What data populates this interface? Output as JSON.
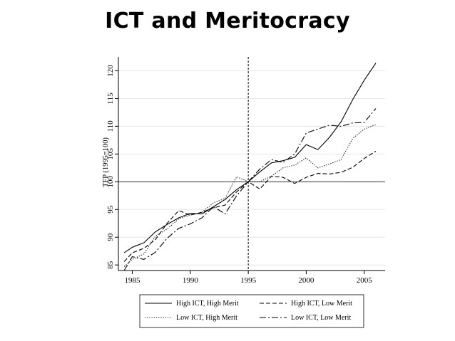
{
  "slide": {
    "title": "ICT and Meritocracy"
  },
  "chart_data": {
    "type": "line",
    "title": "",
    "xlabel": "",
    "ylabel": "TFP (1995=100)",
    "xlim": [
      1983.8,
      2006.8
    ],
    "ylim": [
      84,
      122.5
    ],
    "x_ticks": [
      1985,
      1990,
      1995,
      2000,
      2005
    ],
    "y_ticks": [
      85,
      90,
      95,
      100,
      105,
      110,
      115,
      120
    ],
    "reference_vline_x": 1995,
    "reference_hline_y": 100,
    "legend_position": "bottom",
    "series": [
      {
        "name": "High ICT, High Merit",
        "style": "solid",
        "x": [
          1984.3,
          1985,
          1986,
          1987,
          1988,
          1989,
          1990,
          1991,
          1992,
          1993,
          1994,
          1995,
          1996,
          1997,
          1998,
          1999,
          2000,
          2001,
          2002,
          2003,
          2004,
          2005,
          2006
        ],
        "y": [
          87.2,
          88.2,
          89,
          91,
          92.3,
          93.5,
          94.3,
          94.2,
          95.5,
          96.8,
          98.6,
          100,
          101.8,
          103.4,
          103.8,
          104.4,
          106.7,
          105.8,
          108,
          110.8,
          114.8,
          118.3,
          121.4
        ]
      },
      {
        "name": "High ICT, Low Merit",
        "style": "dash",
        "x": [
          1984.3,
          1985,
          1986,
          1987,
          1988,
          1989,
          1990,
          1991,
          1992,
          1993,
          1994,
          1995,
          1996,
          1997,
          1998,
          1999,
          2000,
          2001,
          2002,
          2003,
          2004,
          2005,
          2006
        ],
        "y": [
          85.6,
          87.2,
          88,
          89.6,
          92.5,
          94.8,
          94,
          94.5,
          95.3,
          95.8,
          98.2,
          100,
          98.7,
          101,
          100.8,
          99.7,
          100.8,
          101.5,
          101.4,
          101.7,
          102.6,
          104.2,
          105.5
        ]
      },
      {
        "name": "Low ICT, High Merit",
        "style": "dot",
        "x": [
          1984.3,
          1985,
          1986,
          1987,
          1988,
          1989,
          1990,
          1991,
          1992,
          1993,
          1994,
          1995,
          1996,
          1997,
          1998,
          1999,
          2000,
          2001,
          2002,
          2003,
          2004,
          2005,
          2006
        ],
        "y": [
          84.7,
          86,
          87,
          90.2,
          91.5,
          93.3,
          94,
          94.5,
          96.2,
          97,
          100.9,
          100,
          100,
          101,
          102.5,
          103,
          104.3,
          102.5,
          103.2,
          104,
          107.8,
          109.5,
          110.3
        ]
      },
      {
        "name": "Low ICT, Low Merit",
        "style": "dashdot",
        "x": [
          1984.3,
          1985,
          1986,
          1987,
          1988,
          1989,
          1990,
          1991,
          1992,
          1993,
          1994,
          1995,
          1996,
          1997,
          1998,
          1999,
          2000,
          2001,
          2002,
          2003,
          2004,
          2005,
          2006
        ],
        "y": [
          84,
          86.5,
          86,
          87.3,
          89.8,
          91.6,
          92.4,
          93.5,
          95.5,
          94.2,
          97.5,
          100,
          102.3,
          104,
          103.5,
          105,
          108.8,
          109.5,
          110.2,
          110,
          110.6,
          110.7,
          113.2
        ]
      }
    ]
  }
}
